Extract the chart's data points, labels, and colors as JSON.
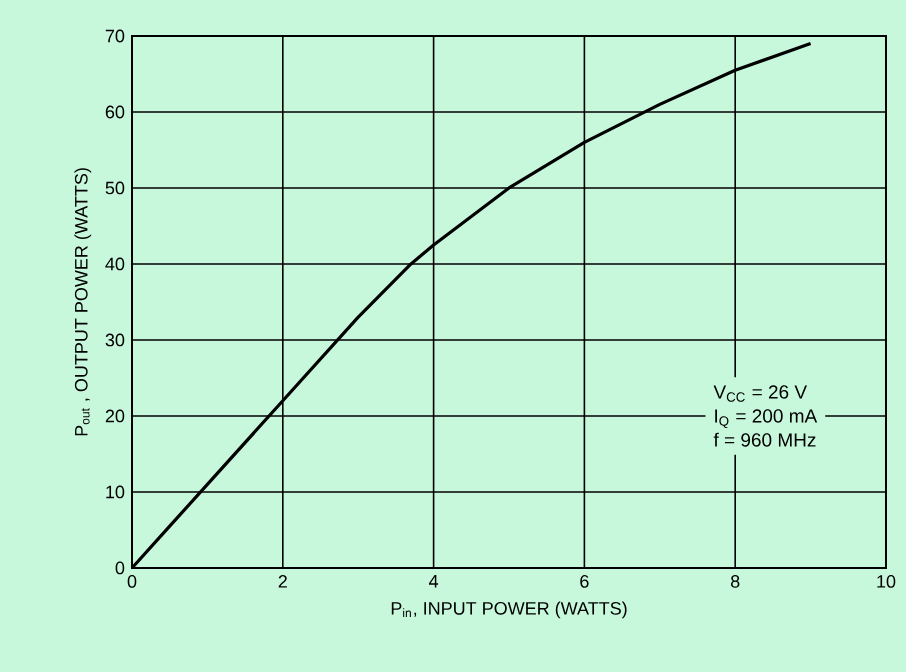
{
  "chart_data": {
    "type": "line",
    "xlabel": "P$_{in}$, INPUT POWER (WATTS)",
    "ylabel": "P$_{out}$ , OUTPUT POWER (WATTS)",
    "x": [
      0,
      0.5,
      1,
      2,
      3,
      3.7,
      4,
      5,
      6,
      6.8,
      7,
      8,
      9
    ],
    "series": [
      {
        "color": "#000000",
        "values": [
          0,
          5.5,
          11,
          22,
          33,
          40,
          42.5,
          50,
          56,
          60,
          61,
          65.5,
          69
        ]
      }
    ],
    "xlim": [
      0,
      10
    ],
    "ylim": [
      0,
      70
    ],
    "xticks": [
      0,
      2,
      4,
      6,
      8,
      10
    ],
    "yticks": [
      0,
      10,
      20,
      30,
      40,
      50,
      60,
      70
    ],
    "grid": true,
    "marker": "none",
    "line_style": "solid",
    "annotations": [
      "V$_{CC}$ = 26 V",
      "I$_{Q}$ = 200 mA",
      "f = 960 MHz"
    ]
  }
}
